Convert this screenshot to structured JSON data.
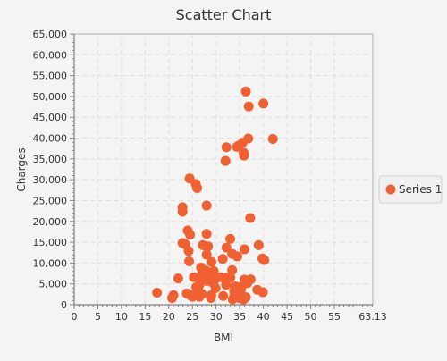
{
  "chart_data": {
    "type": "scatter",
    "title": "Scatter Chart",
    "xlabel": "BMI",
    "ylabel": "Charges",
    "xlim": [
      0,
      63.13
    ],
    "ylim": [
      0,
      65000
    ],
    "x_ticks": [
      "0",
      "5",
      "10",
      "15",
      "20",
      "25",
      "30",
      "35",
      "40",
      "45",
      "50",
      "55",
      "63.13"
    ],
    "x_tick_values": [
      0,
      5,
      10,
      15,
      20,
      25,
      30,
      35,
      40,
      45,
      50,
      55,
      63.13
    ],
    "y_ticks": [
      "0",
      "5,000",
      "10,000",
      "15,000",
      "20,000",
      "25,000",
      "30,000",
      "35,000",
      "40,000",
      "45,000",
      "50,000",
      "55,000",
      "60,000",
      "65,000"
    ],
    "y_tick_values": [
      0,
      5000,
      10000,
      15000,
      20000,
      25000,
      30000,
      35000,
      40000,
      45000,
      50000,
      55000,
      60000,
      65000
    ],
    "grid": true,
    "legend_position": "right",
    "marker_color": "#f06030",
    "series": [
      {
        "name": "Series 1",
        "points": [
          [
            36.3,
            51200
          ],
          [
            40.0,
            48300
          ],
          [
            36.9,
            47600
          ],
          [
            42.0,
            39800
          ],
          [
            36.8,
            39900
          ],
          [
            35.6,
            38900
          ],
          [
            34.8,
            38200
          ],
          [
            34.4,
            37900
          ],
          [
            32.2,
            37800
          ],
          [
            35.8,
            36500
          ],
          [
            35.9,
            35800
          ],
          [
            32.0,
            34500
          ],
          [
            24.4,
            30300
          ],
          [
            25.7,
            29000
          ],
          [
            26.0,
            28000
          ],
          [
            28.0,
            23800
          ],
          [
            22.9,
            23400
          ],
          [
            22.9,
            22300
          ],
          [
            37.2,
            20800
          ],
          [
            24.0,
            17800
          ],
          [
            28.0,
            17000
          ],
          [
            24.5,
            16800
          ],
          [
            33.0,
            15800
          ],
          [
            27.2,
            14300
          ],
          [
            22.9,
            14800
          ],
          [
            23.5,
            14500
          ],
          [
            28.3,
            14000
          ],
          [
            39.0,
            14300
          ],
          [
            28.0,
            14000
          ],
          [
            32.2,
            13700
          ],
          [
            36.0,
            13300
          ],
          [
            24.2,
            12900
          ],
          [
            33.4,
            12200
          ],
          [
            28.0,
            12000
          ],
          [
            34.5,
            11600
          ],
          [
            39.8,
            11100
          ],
          [
            40.2,
            10700
          ],
          [
            31.4,
            11000
          ],
          [
            24.3,
            10400
          ],
          [
            29.0,
            10300
          ],
          [
            26.8,
            8900
          ],
          [
            27.8,
            8200
          ],
          [
            29.5,
            8100
          ],
          [
            33.4,
            8300
          ],
          [
            27.1,
            7600
          ],
          [
            28.8,
            7200
          ],
          [
            26.8,
            6700
          ],
          [
            30.1,
            6400
          ],
          [
            31.0,
            6600
          ],
          [
            32.2,
            6500
          ],
          [
            33.0,
            6500
          ],
          [
            36.0,
            6000
          ],
          [
            22.0,
            6300
          ],
          [
            25.3,
            6600
          ],
          [
            37.3,
            6100
          ],
          [
            28.0,
            5700
          ],
          [
            29.4,
            5200
          ],
          [
            32.1,
            4800
          ],
          [
            36.6,
            5200
          ],
          [
            25.8,
            4200
          ],
          [
            26.4,
            4600
          ],
          [
            29.9,
            4000
          ],
          [
            34.0,
            4400
          ],
          [
            35.0,
            4200
          ],
          [
            35.3,
            3800
          ],
          [
            33.8,
            3300
          ],
          [
            38.7,
            3600
          ],
          [
            39.9,
            3000
          ],
          [
            17.5,
            2900
          ],
          [
            23.8,
            2700
          ],
          [
            24.5,
            2300
          ],
          [
            25.9,
            2700
          ],
          [
            27.0,
            2600
          ],
          [
            29.0,
            2300
          ],
          [
            31.5,
            2100
          ],
          [
            33.9,
            2200
          ],
          [
            35.2,
            2500
          ],
          [
            35.7,
            2000
          ],
          [
            36.3,
            1800
          ],
          [
            21.0,
            2300
          ],
          [
            20.7,
            1600
          ],
          [
            25.0,
            1900
          ],
          [
            26.5,
            1900
          ],
          [
            28.9,
            1600
          ],
          [
            33.5,
            1300
          ],
          [
            34.9,
            1600
          ],
          [
            35.8,
            1300
          ],
          [
            34.0,
            2900
          ]
        ]
      }
    ]
  }
}
